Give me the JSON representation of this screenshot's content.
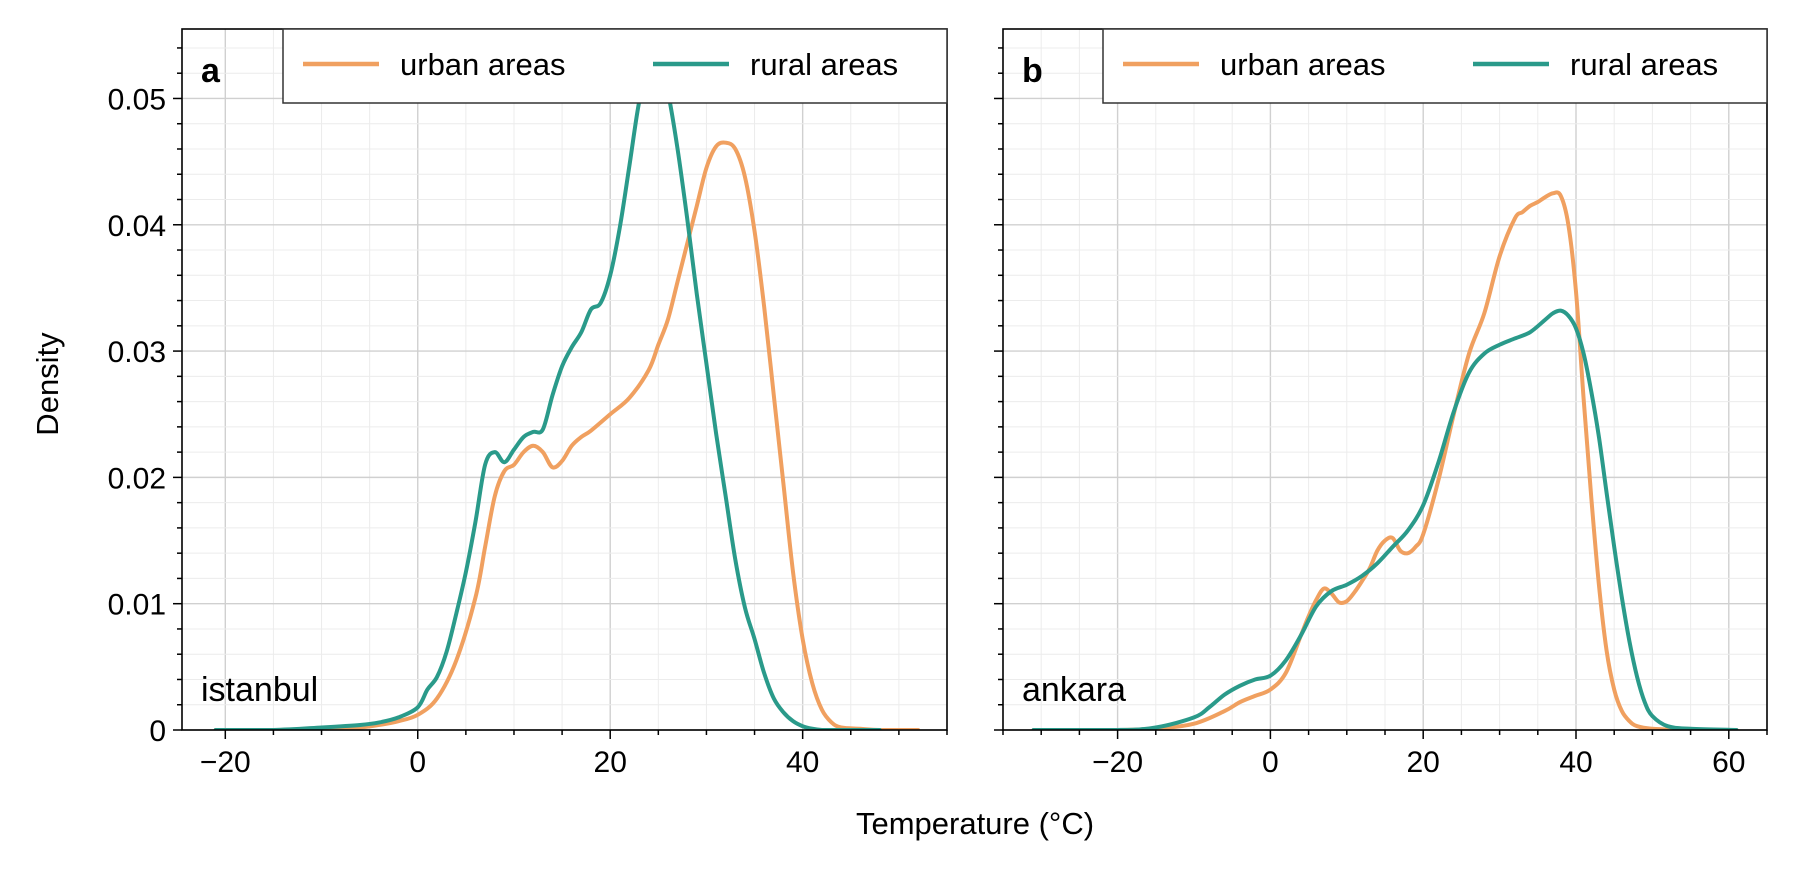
{
  "figure": {
    "xlabel": "Temperature (°C)",
    "ylabel": "Density",
    "colors": {
      "urban": "#f0a060",
      "rural": "#2a9a8a"
    }
  },
  "chart_data": [
    {
      "type": "line",
      "panel": "a",
      "city": "istanbul",
      "xlabel": "Temperature (°C)",
      "ylabel": "Density",
      "xlim": [
        -24.5,
        55
      ],
      "ylim": [
        0,
        0.0555
      ],
      "xticks": [
        -20,
        0,
        20,
        40
      ],
      "xtick_labels": [
        "−20",
        "0",
        "20",
        "40"
      ],
      "yticks": [
        0,
        0.01,
        0.02,
        0.03,
        0.04,
        0.05
      ],
      "ytick_labels": [
        "0",
        "0.01",
        "0.02",
        "0.03",
        "0.04",
        "0.05"
      ],
      "grid": true,
      "legend": {
        "placement": "top-right",
        "columns": 2
      },
      "series": [
        {
          "name": "urban areas",
          "x": [
            -21,
            -15,
            -10,
            -6,
            -4,
            -2,
            0,
            2,
            4,
            6,
            7,
            8,
            9,
            10,
            11,
            12,
            13,
            14,
            15,
            16,
            17,
            18,
            20,
            22,
            24,
            25,
            26,
            27,
            28,
            29,
            30,
            31,
            32,
            33,
            34,
            35,
            36,
            37,
            38,
            39,
            40,
            41,
            42,
            43,
            44,
            46,
            48,
            52
          ],
          "y": [
            0,
            0,
            0.0001,
            0.0002,
            0.0004,
            0.0007,
            0.0012,
            0.0025,
            0.0055,
            0.0105,
            0.0145,
            0.0185,
            0.0205,
            0.021,
            0.022,
            0.0225,
            0.022,
            0.0208,
            0.0213,
            0.0225,
            0.0232,
            0.0237,
            0.025,
            0.0263,
            0.0285,
            0.0305,
            0.0325,
            0.0355,
            0.0385,
            0.0415,
            0.0445,
            0.0462,
            0.0465,
            0.046,
            0.0438,
            0.0395,
            0.0335,
            0.0265,
            0.0195,
            0.0125,
            0.0072,
            0.0037,
            0.0016,
            0.0006,
            0.0002,
            0.0001,
            0,
            0
          ]
        },
        {
          "name": "rural areas",
          "x": [
            -21,
            -15,
            -10,
            -6,
            -4,
            -2,
            0,
            1,
            2,
            3,
            4,
            5,
            6,
            7,
            8,
            9,
            10,
            11,
            12,
            13,
            14,
            15,
            16,
            17,
            18,
            19,
            20,
            21,
            22,
            23,
            24,
            25,
            26,
            27,
            28,
            29,
            30,
            31,
            32,
            33,
            34,
            35,
            36,
            37,
            38,
            39,
            40,
            41,
            42,
            43,
            44,
            45,
            46,
            48
          ],
          "y": [
            0,
            0,
            0.0002,
            0.0004,
            0.0006,
            0.001,
            0.0018,
            0.0032,
            0.0042,
            0.0062,
            0.0092,
            0.0125,
            0.0165,
            0.021,
            0.022,
            0.0212,
            0.0222,
            0.0232,
            0.0236,
            0.0238,
            0.0265,
            0.0288,
            0.0303,
            0.0315,
            0.0333,
            0.0338,
            0.036,
            0.0398,
            0.0447,
            0.0497,
            0.0527,
            0.0532,
            0.0505,
            0.046,
            0.0405,
            0.0345,
            0.029,
            0.0235,
            0.0185,
            0.0135,
            0.0097,
            0.0072,
            0.0045,
            0.0025,
            0.0014,
            0.0007,
            0.0003,
            0.0001,
            0,
            0,
            0,
            0,
            0,
            0
          ]
        }
      ]
    },
    {
      "type": "line",
      "panel": "b",
      "city": "ankara",
      "xlabel": "Temperature (°C)",
      "ylabel": "Density",
      "xlim": [
        -35,
        65
      ],
      "ylim": [
        0,
        0.0555
      ],
      "xticks": [
        -20,
        0,
        20,
        40,
        60
      ],
      "xtick_labels": [
        "−20",
        "0",
        "20",
        "40",
        "60"
      ],
      "yticks": [
        0,
        0.01,
        0.02,
        0.03,
        0.04,
        0.05
      ],
      "ytick_labels": [
        "0",
        "0.01",
        "0.02",
        "0.03",
        "0.04",
        "0.05"
      ],
      "grid": true,
      "legend": {
        "placement": "top-right",
        "columns": 2
      },
      "series": [
        {
          "name": "urban areas",
          "x": [
            -31,
            -20,
            -15,
            -10,
            -6,
            -4,
            -2,
            0,
            2,
            4,
            5,
            6,
            7,
            8,
            9,
            10,
            11,
            12,
            13,
            14,
            15,
            16,
            17,
            18,
            19,
            20,
            22,
            24,
            26,
            28,
            30,
            32,
            33,
            34,
            35,
            36,
            37,
            38,
            39,
            40,
            41,
            42,
            43,
            44,
            45,
            46,
            47,
            48,
            50,
            55,
            61
          ],
          "y": [
            0,
            0,
            0.0001,
            0.0005,
            0.0015,
            0.0022,
            0.0027,
            0.0032,
            0.0045,
            0.0075,
            0.009,
            0.0103,
            0.0112,
            0.0108,
            0.0101,
            0.0102,
            0.0109,
            0.0118,
            0.0128,
            0.0142,
            0.015,
            0.0152,
            0.0142,
            0.014,
            0.0145,
            0.0155,
            0.0198,
            0.025,
            0.0298,
            0.033,
            0.0375,
            0.0405,
            0.041,
            0.0415,
            0.0418,
            0.0422,
            0.0425,
            0.0423,
            0.04,
            0.0347,
            0.0262,
            0.0184,
            0.0115,
            0.0063,
            0.0032,
            0.0015,
            0.0007,
            0.0003,
            0.0001,
            0,
            0
          ]
        },
        {
          "name": "rural areas",
          "x": [
            -31,
            -20,
            -15,
            -10,
            -8,
            -6,
            -4,
            -2,
            0,
            2,
            4,
            6,
            8,
            10,
            12,
            14,
            16,
            18,
            20,
            22,
            24,
            26,
            28,
            30,
            32,
            34,
            36,
            37,
            38,
            39,
            40,
            41,
            42,
            43,
            44,
            45,
            46,
            47,
            48,
            49,
            50,
            52,
            55,
            61
          ],
          "y": [
            0,
            0,
            0.0002,
            0.001,
            0.0018,
            0.0028,
            0.0035,
            0.004,
            0.0043,
            0.0055,
            0.0075,
            0.0098,
            0.011,
            0.0115,
            0.0122,
            0.0132,
            0.0145,
            0.0158,
            0.0178,
            0.0212,
            0.0252,
            0.0283,
            0.0298,
            0.0305,
            0.031,
            0.0315,
            0.0325,
            0.033,
            0.0332,
            0.0328,
            0.0318,
            0.0298,
            0.0268,
            0.0232,
            0.0188,
            0.0145,
            0.0105,
            0.007,
            0.0042,
            0.0022,
            0.0011,
            0.0003,
            0.0001,
            0
          ]
        }
      ]
    }
  ]
}
